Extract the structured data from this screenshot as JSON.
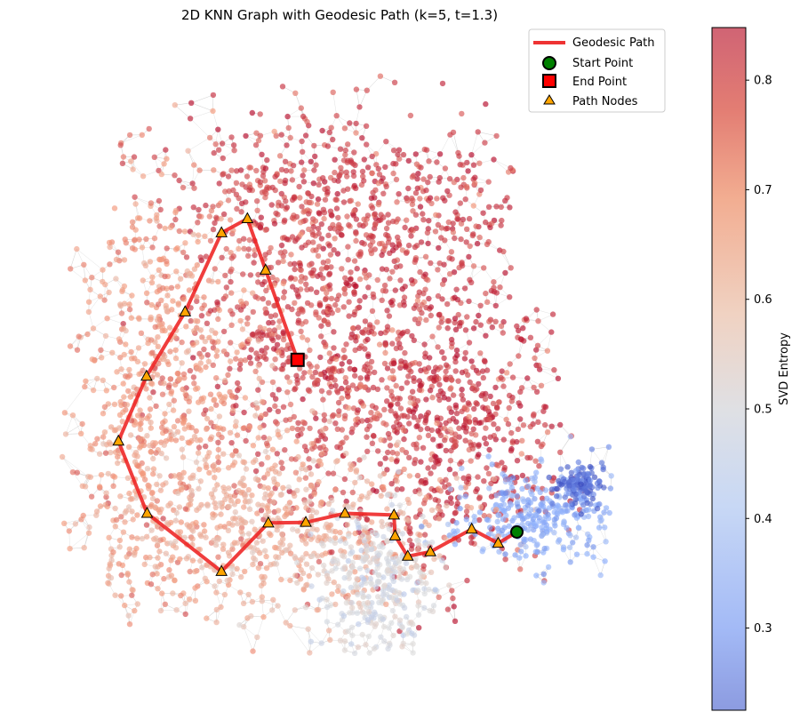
{
  "chart_data": {
    "type": "scatter",
    "title": "2D KNN Graph with Geodesic Path (k=5, t=1.3)",
    "axes_visible": false,
    "grid": false,
    "legend_placement": "top-right",
    "legend": [
      {
        "label": "Geodesic Path",
        "marker": "line",
        "color": "#ee3333"
      },
      {
        "label": "Start Point",
        "marker": "circle",
        "color": "#008000"
      },
      {
        "label": "End Point",
        "marker": "square",
        "color": "#ff0000"
      },
      {
        "label": "Path Nodes",
        "marker": "triangle",
        "color": "#ffa500"
      }
    ],
    "colorbar": {
      "label": "SVD Entropy",
      "colormap": "coolwarm",
      "range": [
        0.225,
        0.848
      ],
      "ticks": [
        "0.3",
        "0.4",
        "0.5",
        "0.6",
        "0.7",
        "0.8"
      ]
    },
    "point_cloud": {
      "approx_points": 4000,
      "clusters": [
        {
          "name": "high-entropy-upper",
          "cx": 0.46,
          "cy": 0.58,
          "sx": 0.12,
          "sy": 0.17,
          "entropy": 0.78,
          "weight": 0.22
        },
        {
          "name": "high-entropy-right",
          "cx": 0.72,
          "cy": 0.42,
          "sx": 0.1,
          "sy": 0.16,
          "entropy": 0.8,
          "weight": 0.16
        },
        {
          "name": "high-entropy-top",
          "cx": 0.55,
          "cy": 0.8,
          "sx": 0.18,
          "sy": 0.07,
          "entropy": 0.79,
          "weight": 0.1
        },
        {
          "name": "mid-entropy-left",
          "cx": 0.18,
          "cy": 0.45,
          "sx": 0.09,
          "sy": 0.2,
          "entropy": 0.69,
          "weight": 0.17
        },
        {
          "name": "mid-entropy-bottom",
          "cx": 0.38,
          "cy": 0.22,
          "sx": 0.16,
          "sy": 0.08,
          "entropy": 0.64,
          "weight": 0.14
        },
        {
          "name": "neutral-lower",
          "cx": 0.58,
          "cy": 0.12,
          "sx": 0.06,
          "sy": 0.07,
          "entropy": 0.53,
          "weight": 0.08
        },
        {
          "name": "low-entropy-tail",
          "cx": 0.86,
          "cy": 0.24,
          "sx": 0.07,
          "sy": 0.04,
          "entropy": 0.38,
          "weight": 0.07
        },
        {
          "name": "lowest-entropy-tip",
          "cx": 0.94,
          "cy": 0.3,
          "sx": 0.025,
          "sy": 0.02,
          "entropy": 0.28,
          "weight": 0.03
        }
      ]
    },
    "start_point": {
      "x": 0.825,
      "y": 0.215
    },
    "end_point": {
      "x": 0.427,
      "y": 0.52
    },
    "path_nodes": [
      {
        "x": 0.825,
        "y": 0.215
      },
      {
        "x": 0.791,
        "y": 0.195
      },
      {
        "x": 0.743,
        "y": 0.22
      },
      {
        "x": 0.668,
        "y": 0.18
      },
      {
        "x": 0.627,
        "y": 0.172
      },
      {
        "x": 0.604,
        "y": 0.208
      },
      {
        "x": 0.602,
        "y": 0.245
      },
      {
        "x": 0.513,
        "y": 0.248
      },
      {
        "x": 0.442,
        "y": 0.232
      },
      {
        "x": 0.374,
        "y": 0.231
      },
      {
        "x": 0.289,
        "y": 0.145
      },
      {
        "x": 0.154,
        "y": 0.248
      },
      {
        "x": 0.102,
        "y": 0.376
      },
      {
        "x": 0.153,
        "y": 0.491
      },
      {
        "x": 0.223,
        "y": 0.605
      },
      {
        "x": 0.289,
        "y": 0.745
      },
      {
        "x": 0.336,
        "y": 0.77
      },
      {
        "x": 0.369,
        "y": 0.679
      },
      {
        "x": 0.427,
        "y": 0.52
      }
    ]
  }
}
